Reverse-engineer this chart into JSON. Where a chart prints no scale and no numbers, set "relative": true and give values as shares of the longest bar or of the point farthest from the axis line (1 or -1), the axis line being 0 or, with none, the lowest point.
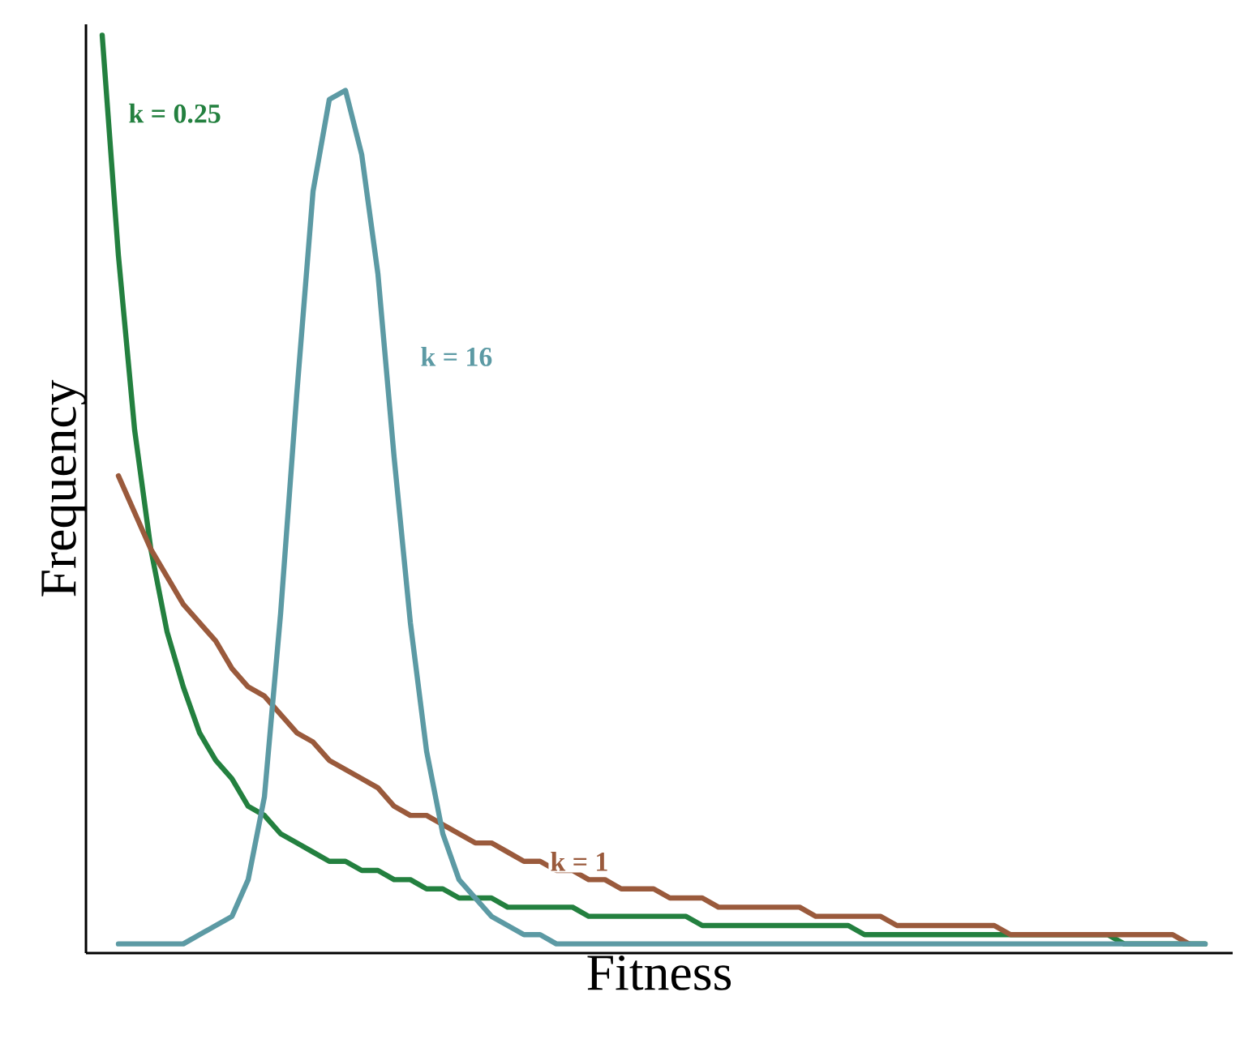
{
  "chart_data": {
    "type": "line",
    "xlabel": "Fitness",
    "ylabel": "Frequency",
    "relative": true,
    "legend": false,
    "marker": "none",
    "line_style": "solid",
    "categories": [
      null,
      null,
      null,
      null,
      null,
      null,
      null,
      null,
      null,
      null,
      null,
      null,
      null,
      null,
      null,
      null,
      null,
      null,
      null,
      null,
      null,
      null,
      null,
      null,
      null,
      null,
      null,
      null,
      null,
      null,
      null,
      null,
      null,
      null,
      null,
      null,
      null,
      null,
      null,
      null,
      null,
      null,
      null,
      null,
      null,
      null,
      null,
      null,
      null,
      null,
      null,
      null,
      null,
      null,
      null,
      null,
      null,
      null,
      null,
      null,
      null,
      null,
      null,
      null,
      null,
      null,
      null,
      null,
      null
    ],
    "series": [
      {
        "name": "k = 0.25",
        "color": "#23803f",
        "values": [
          1.0,
          0.76,
          0.57,
          0.44,
          0.35,
          0.29,
          0.24,
          0.21,
          0.19,
          0.16,
          0.15,
          0.13,
          0.12,
          0.11,
          0.1,
          0.1,
          0.09,
          0.09,
          0.08,
          0.08,
          0.07,
          0.07,
          0.06,
          0.06,
          0.06,
          0.05,
          0.05,
          0.05,
          0.05,
          0.05,
          0.04,
          0.04,
          0.04,
          0.04,
          0.04,
          0.04,
          0.04,
          0.03,
          0.03,
          0.03,
          0.03,
          0.03,
          0.03,
          0.03,
          0.03,
          0.03,
          0.03,
          0.02,
          0.02,
          0.02,
          0.02,
          0.02,
          0.02,
          0.02,
          0.02,
          0.02,
          0.02,
          0.02,
          0.02,
          0.02,
          0.02,
          0.02,
          0.02,
          0.01,
          0.01,
          0.01,
          0.01,
          0.01,
          0.01
        ]
      },
      {
        "name": "k = 1",
        "color": "#9a5a3c",
        "values": [
          null,
          0.52,
          0.48,
          0.44,
          0.41,
          0.38,
          0.36,
          0.34,
          0.31,
          0.29,
          0.28,
          0.26,
          0.24,
          0.23,
          0.21,
          0.2,
          0.19,
          0.18,
          0.16,
          0.15,
          0.15,
          0.14,
          0.13,
          0.12,
          0.12,
          0.11,
          0.1,
          0.1,
          0.09,
          0.09,
          0.08,
          0.08,
          0.07,
          0.07,
          0.07,
          0.06,
          0.06,
          0.06,
          0.05,
          0.05,
          0.05,
          0.05,
          0.05,
          0.05,
          0.04,
          0.04,
          0.04,
          0.04,
          0.04,
          0.03,
          0.03,
          0.03,
          0.03,
          0.03,
          0.03,
          0.03,
          0.02,
          0.02,
          0.02,
          0.02,
          0.02,
          0.02,
          0.02,
          0.02,
          0.02,
          0.02,
          0.02,
          0.01,
          null
        ]
      },
      {
        "name": "k = 16",
        "color": "#5c9aa4",
        "values": [
          null,
          0.01,
          0.01,
          0.01,
          0.01,
          0.01,
          0.02,
          0.03,
          0.04,
          0.08,
          0.17,
          0.37,
          0.61,
          0.83,
          0.93,
          0.94,
          0.87,
          0.74,
          0.54,
          0.36,
          0.22,
          0.13,
          0.08,
          0.06,
          0.04,
          0.03,
          0.02,
          0.02,
          0.01,
          0.01,
          0.01,
          0.01,
          0.01,
          0.01,
          0.01,
          0.01,
          0.01,
          0.01,
          0.01,
          0.01,
          0.01,
          0.01,
          0.01,
          0.01,
          0.01,
          0.01,
          0.01,
          0.01,
          0.01,
          0.01,
          0.01,
          0.01,
          0.01,
          0.01,
          0.01,
          0.01,
          0.01,
          0.01,
          0.01,
          0.01,
          0.01,
          0.01,
          0.01,
          0.01,
          0.01,
          0.01,
          0.01,
          0.01,
          0.01
        ]
      }
    ]
  }
}
